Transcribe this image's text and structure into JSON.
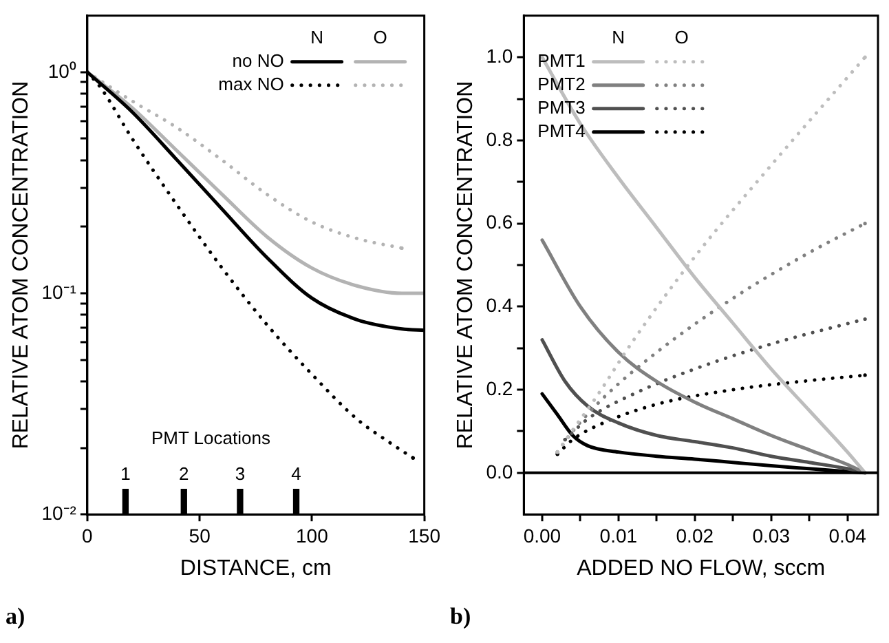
{
  "chart_data": [
    {
      "type": "line",
      "title": "a)",
      "xlabel": "DISTANCE, cm",
      "ylabel": "RELATIVE ATOM CONCENTRATION",
      "log": "y",
      "grid": false,
      "legend": "top right",
      "xlim": [
        0,
        150
      ],
      "xticks": [
        0,
        50,
        100,
        150
      ],
      "ylim": [
        0.01,
        1.8
      ],
      "yticks": [
        {
          "value": 0.01,
          "label": "10⁻²"
        },
        {
          "value": 0.02,
          "label": null
        },
        {
          "value": 0.03,
          "label": null
        },
        {
          "value": 0.04,
          "label": null
        },
        {
          "value": 0.05,
          "label": null
        },
        {
          "value": 0.06,
          "label": null
        },
        {
          "value": 0.07,
          "label": null
        },
        {
          "value": 0.08,
          "label": null
        },
        {
          "value": 0.09,
          "label": null
        },
        {
          "value": 0.1,
          "label": "10⁻¹"
        },
        {
          "value": 0.2,
          "label": null
        },
        {
          "value": 0.3,
          "label": null
        },
        {
          "value": 0.4,
          "label": null
        },
        {
          "value": 0.5,
          "label": null
        },
        {
          "value": 0.6,
          "label": null
        },
        {
          "value": 0.7,
          "label": null
        },
        {
          "value": 0.8,
          "label": null
        },
        {
          "value": 0.9,
          "label": null
        },
        {
          "value": 1,
          "label": "10⁰"
        }
      ],
      "annotations": [
        "N",
        "O",
        "PMT Locations",
        {
          "text": "1",
          "x": 17,
          "y": 0.013
        },
        {
          "text": "2",
          "x": 43,
          "y": 0.013
        },
        {
          "text": "3",
          "x": 68,
          "y": 0.013
        },
        {
          "text": "4",
          "x": 93,
          "y": 0.013
        }
      ],
      "series": [
        {
          "name": "no NO",
          "color": "#000000",
          "line_style": "solid",
          "x": [
            0,
            20,
            40,
            60,
            80,
            100,
            120,
            140,
            150
          ],
          "values": [
            1,
            0.66,
            0.4,
            0.24,
            0.145,
            0.095,
            0.076,
            0.069,
            0.068
          ]
        },
        {
          "color": "#b3b3b3",
          "line_style": "solid",
          "x": [
            0,
            20,
            40,
            60,
            80,
            100,
            120,
            140,
            150
          ],
          "values": [
            1,
            0.69,
            0.44,
            0.28,
            0.18,
            0.13,
            0.108,
            0.1,
            0.1
          ]
        },
        {
          "name": "max NO",
          "color": "#000000",
          "line_style": "dotted",
          "x": [
            0,
            6,
            20,
            40,
            60,
            80,
            100,
            120,
            135,
            145
          ],
          "values": [
            1,
            0.85,
            0.5,
            0.25,
            0.13,
            0.072,
            0.043,
            0.027,
            0.021,
            0.018
          ]
        },
        {
          "color": "#b3b3b3",
          "line_style": "dotted",
          "x": [
            0,
            20,
            40,
            60,
            80,
            100,
            120,
            140
          ],
          "values": [
            1,
            0.74,
            0.56,
            0.4,
            0.28,
            0.21,
            0.177,
            0.16
          ]
        },
        {
          "type": "bar",
          "color": "#000000",
          "x": [
            17,
            43,
            68,
            93
          ],
          "values": [
            0.013,
            0.013,
            0.013,
            0.013
          ]
        }
      ]
    },
    {
      "type": "line",
      "title": "b)",
      "xlabel": "ADDED NO FLOW, sccm",
      "ylabel": "RELATIVE ATOM CONCENTRATION",
      "grid": false,
      "legend": "top left",
      "xlim": [
        -0.0024,
        0.044
      ],
      "xticks": [
        {
          "value": 0,
          "label": "0.00"
        },
        {
          "value": 0.005,
          "label": null
        },
        {
          "value": 0.01,
          "label": "0.01"
        },
        {
          "value": 0.015,
          "label": null
        },
        {
          "value": 0.02,
          "label": "0.02"
        },
        {
          "value": 0.025,
          "label": null
        },
        {
          "value": 0.03,
          "label": "0.03"
        },
        {
          "value": 0.035,
          "label": null
        },
        {
          "value": 0.04,
          "label": "0.04"
        }
      ],
      "ylim": [
        -0.1,
        1.1
      ],
      "yticks": [
        {
          "value": 0,
          "label": "0.0"
        },
        {
          "value": 0.1,
          "label": null
        },
        {
          "value": 0.2,
          "label": "0.2"
        },
        {
          "value": 0.3,
          "label": null
        },
        {
          "value": 0.4,
          "label": "0.4"
        },
        {
          "value": 0.5,
          "label": null
        },
        {
          "value": 0.6,
          "label": "0.6"
        },
        {
          "value": 0.7,
          "label": null
        },
        {
          "value": 0.8,
          "label": "0.8"
        },
        {
          "value": 0.9,
          "label": null
        },
        {
          "value": 1,
          "label": "1.0"
        }
      ],
      "ref_lines": [
        {
          "axis": "y",
          "value": 0,
          "color": "#000000"
        }
      ],
      "annotations": [
        "N",
        "O"
      ],
      "series": [
        {
          "name": "PMT1",
          "color": "#bdbdbd",
          "line_style": "solid",
          "x": [
            0,
            0.005,
            0.01,
            0.015,
            0.02,
            0.025,
            0.03,
            0.035,
            0.04,
            0.0423
          ],
          "values": [
            1,
            0.84,
            0.71,
            0.59,
            0.47,
            0.36,
            0.25,
            0.15,
            0.05,
            0
          ]
        },
        {
          "color": "#bdbdbd",
          "line_style": "dotted",
          "x": [
            0.002,
            0.0035,
            0.007,
            0.012,
            0.02,
            0.03,
            0.0423
          ],
          "values": [
            0.05,
            0.09,
            0.18,
            0.32,
            0.52,
            0.74,
            1
          ]
        },
        {
          "name": "PMT2",
          "color": "#808080",
          "line_style": "solid",
          "x": [
            0,
            0.005,
            0.01,
            0.015,
            0.02,
            0.025,
            0.03,
            0.035,
            0.04,
            0.0423
          ],
          "values": [
            0.56,
            0.4,
            0.29,
            0.22,
            0.17,
            0.13,
            0.09,
            0.055,
            0.02,
            0
          ]
        },
        {
          "color": "#808080",
          "line_style": "dotted",
          "x": [
            0.002,
            0.004,
            0.008,
            0.015,
            0.025,
            0.035,
            0.0423
          ],
          "values": [
            0.05,
            0.1,
            0.18,
            0.29,
            0.42,
            0.53,
            0.6
          ]
        },
        {
          "name": "PMT3",
          "color": "#505050",
          "line_style": "solid",
          "x": [
            0,
            0.003,
            0.006,
            0.01,
            0.015,
            0.02,
            0.025,
            0.03,
            0.035,
            0.04,
            0.0423
          ],
          "values": [
            0.32,
            0.22,
            0.16,
            0.12,
            0.09,
            0.075,
            0.06,
            0.04,
            0.025,
            0.01,
            0
          ]
        },
        {
          "color": "#505050",
          "line_style": "dotted",
          "x": [
            0.003,
            0.006,
            0.012,
            0.02,
            0.03,
            0.0423
          ],
          "values": [
            0.08,
            0.13,
            0.19,
            0.25,
            0.31,
            0.37
          ]
        },
        {
          "name": "PMT4",
          "color": "#000000",
          "line_style": "solid",
          "x": [
            0,
            0.002,
            0.004,
            0.006,
            0.01,
            0.015,
            0.02,
            0.025,
            0.03,
            0.035,
            0.04,
            0.0423
          ],
          "values": [
            0.19,
            0.14,
            0.09,
            0.065,
            0.05,
            0.04,
            0.033,
            0.025,
            0.017,
            0.01,
            0.003,
            0
          ]
        },
        {
          "color": "#000000",
          "line_style": "dotted",
          "x": [
            0.002,
            0.004,
            0.008,
            0.015,
            0.025,
            0.035,
            0.0423
          ],
          "values": [
            0.045,
            0.08,
            0.12,
            0.165,
            0.2,
            0.222,
            0.235
          ]
        }
      ]
    }
  ]
}
